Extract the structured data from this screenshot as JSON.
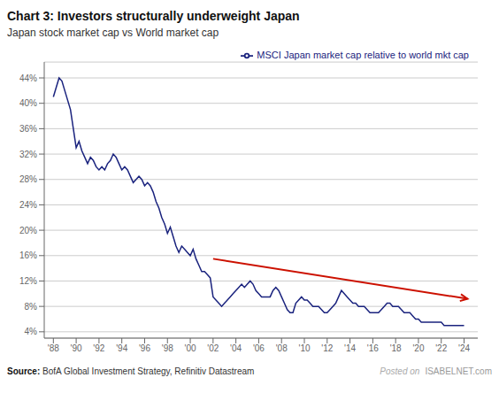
{
  "chart_data": {
    "type": "line",
    "title": "Chart 3: Investors structurally underweight Japan",
    "subtitle": "Japan stock market cap vs World market cap",
    "source_label": "Source:",
    "source": "BofA Global Investment Strategy, Refinitiv Datastream",
    "x": [
      1988.0,
      1988.25,
      1988.5,
      1988.75,
      1989.0,
      1989.25,
      1989.5,
      1989.75,
      1990.0,
      1990.25,
      1990.5,
      1990.75,
      1991.0,
      1991.25,
      1991.5,
      1991.75,
      1992.0,
      1992.25,
      1992.5,
      1992.75,
      1993.0,
      1993.25,
      1993.5,
      1993.75,
      1994.0,
      1994.25,
      1994.5,
      1994.75,
      1995.0,
      1995.25,
      1995.5,
      1995.75,
      1996.0,
      1996.25,
      1996.5,
      1996.75,
      1997.0,
      1997.25,
      1997.5,
      1997.75,
      1998.0,
      1998.25,
      1998.5,
      1998.75,
      1999.0,
      1999.25,
      1999.5,
      1999.75,
      2000.0,
      2000.25,
      2000.5,
      2000.75,
      2001.0,
      2001.25,
      2001.5,
      2001.75,
      2002.0,
      2002.25,
      2002.5,
      2002.75,
      2003.0,
      2003.25,
      2003.5,
      2003.75,
      2004.0,
      2004.25,
      2004.5,
      2004.75,
      2005.0,
      2005.25,
      2005.5,
      2005.75,
      2006.0,
      2006.25,
      2006.5,
      2006.75,
      2007.0,
      2007.25,
      2007.5,
      2007.75,
      2008.0,
      2008.25,
      2008.5,
      2008.75,
      2009.0,
      2009.25,
      2009.5,
      2009.75,
      2010.0,
      2010.25,
      2010.5,
      2010.75,
      2011.0,
      2011.25,
      2011.5,
      2011.75,
      2012.0,
      2012.25,
      2012.5,
      2012.75,
      2013.0,
      2013.25,
      2013.5,
      2013.75,
      2014.0,
      2014.25,
      2014.5,
      2014.75,
      2015.0,
      2015.25,
      2015.5,
      2015.75,
      2016.0,
      2016.25,
      2016.5,
      2016.75,
      2017.0,
      2017.25,
      2017.5,
      2017.75,
      2018.0,
      2018.25,
      2018.5,
      2018.75,
      2019.0,
      2019.25,
      2019.5,
      2019.75,
      2020.0,
      2020.25,
      2020.5,
      2020.75,
      2021.0,
      2021.25,
      2021.5,
      2021.75,
      2022.0,
      2022.25,
      2022.5,
      2022.75,
      2023.0,
      2023.25,
      2023.5,
      2023.75,
      2024.0
    ],
    "series": [
      {
        "name": "MSCI Japan market cap relative to world mkt cap",
        "color": "#1a237e",
        "values": [
          41.0,
          42.5,
          44.0,
          43.5,
          42.0,
          40.5,
          39.0,
          36.0,
          33.0,
          34.0,
          32.5,
          31.5,
          30.5,
          31.5,
          31.0,
          30.0,
          29.5,
          30.0,
          29.5,
          30.5,
          31.0,
          32.0,
          31.5,
          30.5,
          29.5,
          30.0,
          29.5,
          28.5,
          27.5,
          28.0,
          28.5,
          28.0,
          27.0,
          27.5,
          27.0,
          26.0,
          24.5,
          23.5,
          22.0,
          21.0,
          19.5,
          20.5,
          19.0,
          17.5,
          16.5,
          17.5,
          17.0,
          16.5,
          16.0,
          17.0,
          15.5,
          14.5,
          13.5,
          13.5,
          13.0,
          12.5,
          9.5,
          9.0,
          8.5,
          8.0,
          8.5,
          9.0,
          9.5,
          10.0,
          10.5,
          11.0,
          11.5,
          11.0,
          11.5,
          12.0,
          11.5,
          10.5,
          10.0,
          9.5,
          9.5,
          9.5,
          9.5,
          10.5,
          11.0,
          10.5,
          9.5,
          8.5,
          7.5,
          7.0,
          7.0,
          8.5,
          9.0,
          9.5,
          9.0,
          9.0,
          8.5,
          8.0,
          8.0,
          8.0,
          7.5,
          7.0,
          7.0,
          7.5,
          8.0,
          8.5,
          9.5,
          10.5,
          10.0,
          9.5,
          9.0,
          8.5,
          8.5,
          8.0,
          8.0,
          8.0,
          7.5,
          7.0,
          7.0,
          7.0,
          7.0,
          7.5,
          8.0,
          8.5,
          8.5,
          8.0,
          8.0,
          8.0,
          7.5,
          7.0,
          7.0,
          7.0,
          6.5,
          6.0,
          6.0,
          5.5,
          5.5,
          5.5,
          5.5,
          5.5,
          5.5,
          5.5,
          5.5,
          5.0,
          5.0,
          5.0,
          5.0,
          5.0,
          5.0,
          5.0,
          5.0
        ]
      }
    ],
    "xlim": [
      1987.2,
      2025.2
    ],
    "xticks": [
      {
        "value": 1988,
        "label": "'88"
      },
      {
        "value": 1990,
        "label": "'90"
      },
      {
        "value": 1992,
        "label": "'92"
      },
      {
        "value": 1994,
        "label": "'94"
      },
      {
        "value": 1996,
        "label": "'96"
      },
      {
        "value": 1998,
        "label": "'98"
      },
      {
        "value": 2000,
        "label": "'00"
      },
      {
        "value": 2002,
        "label": "'02"
      },
      {
        "value": 2004,
        "label": "'04"
      },
      {
        "value": 2006,
        "label": "'06"
      },
      {
        "value": 2008,
        "label": "'08"
      },
      {
        "value": 2010,
        "label": "'10"
      },
      {
        "value": 2012,
        "label": "'12"
      },
      {
        "value": 2014,
        "label": "'14"
      },
      {
        "value": 2016,
        "label": "'16"
      },
      {
        "value": 2018,
        "label": "'18"
      },
      {
        "value": 2020,
        "label": "'20"
      },
      {
        "value": 2022,
        "label": "'22"
      },
      {
        "value": 2024,
        "label": "'24"
      }
    ],
    "ylim": [
      3.0,
      46.5
    ],
    "yticks": [
      {
        "value": 4,
        "label": "4%"
      },
      {
        "value": 8,
        "label": "8%"
      },
      {
        "value": 12,
        "label": "12%"
      },
      {
        "value": 16,
        "label": "16%"
      },
      {
        "value": 20,
        "label": "20%"
      },
      {
        "value": 24,
        "label": "24%"
      },
      {
        "value": 28,
        "label": "28%"
      },
      {
        "value": 32,
        "label": "32%"
      },
      {
        "value": 36,
        "label": "36%"
      },
      {
        "value": 40,
        "label": "40%"
      },
      {
        "value": 44,
        "label": "44%"
      }
    ],
    "grid": true,
    "legend": "upper right",
    "annotations": [
      {
        "text": "Posted on"
      },
      {
        "text": "ISABELNET.com"
      }
    ],
    "arrows": [
      {
        "x_start": 2002.0,
        "y_start": 15.5,
        "x_end": 2024.3,
        "y_end": 9.2,
        "color": "#cc1100"
      }
    ]
  }
}
